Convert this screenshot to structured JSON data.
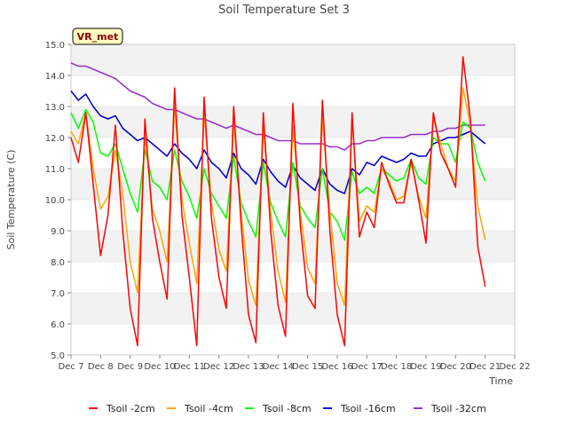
{
  "chart_data": {
    "type": "line",
    "title": "Soil Temperature Set 3",
    "xlabel": "Time",
    "ylabel": "Soil Temperature (C)",
    "station_tag": "VR_met",
    "x_ticks": [
      "Dec 7",
      "Dec 8",
      "Dec 9",
      "Dec 10",
      "Dec 11",
      "Dec 12",
      "Dec 13",
      "Dec 14",
      "Dec 15",
      "Dec 16",
      "Dec 17",
      "Dec 18",
      "Dec 19",
      "Dec 20",
      "Dec 21",
      "Dec 22"
    ],
    "y_ticks": [
      "5.0",
      "6.0",
      "7.0",
      "8.0",
      "9.0",
      "10.0",
      "11.0",
      "12.0",
      "13.0",
      "14.0",
      "15.0"
    ],
    "xlim": [
      "Dec 7",
      "Dec 22"
    ],
    "ylim": [
      5.0,
      15.0
    ],
    "grid": "horizontal bands",
    "legend_position": "bottom",
    "x": [
      "Dec 7 00:00",
      "Dec 7 06:00",
      "Dec 7 12:00",
      "Dec 7 18:00",
      "Dec 8 00:00",
      "Dec 8 06:00",
      "Dec 8 12:00",
      "Dec 8 18:00",
      "Dec 9 00:00",
      "Dec 9 06:00",
      "Dec 9 12:00",
      "Dec 9 18:00",
      "Dec 10 00:00",
      "Dec 10 06:00",
      "Dec 10 12:00",
      "Dec 10 18:00",
      "Dec 11 00:00",
      "Dec 11 06:00",
      "Dec 11 12:00",
      "Dec 11 18:00",
      "Dec 12 00:00",
      "Dec 12 06:00",
      "Dec 12 12:00",
      "Dec 12 18:00",
      "Dec 13 00:00",
      "Dec 13 06:00",
      "Dec 13 12:00",
      "Dec 13 18:00",
      "Dec 14 00:00",
      "Dec 14 06:00",
      "Dec 14 12:00",
      "Dec 14 18:00",
      "Dec 15 00:00",
      "Dec 15 06:00",
      "Dec 15 12:00",
      "Dec 15 18:00",
      "Dec 16 00:00",
      "Dec 16 06:00",
      "Dec 16 12:00",
      "Dec 16 18:00",
      "Dec 17 00:00",
      "Dec 17 06:00",
      "Dec 17 12:00",
      "Dec 17 18:00",
      "Dec 18 00:00",
      "Dec 18 06:00",
      "Dec 18 12:00",
      "Dec 18 18:00",
      "Dec 19 00:00",
      "Dec 19 06:00",
      "Dec 19 12:00",
      "Dec 19 18:00",
      "Dec 20 00:00",
      "Dec 20 06:00",
      "Dec 20 12:00",
      "Dec 20 18:00",
      "Dec 21 00:00"
    ],
    "series": [
      {
        "name": "Tsoil -2cm",
        "color": "#ff0000",
        "values": [
          12.0,
          11.2,
          12.8,
          10.5,
          8.2,
          9.5,
          12.4,
          9.0,
          6.5,
          5.3,
          12.6,
          9.4,
          8.0,
          6.8,
          13.6,
          9.5,
          7.5,
          5.3,
          13.3,
          9.4,
          7.5,
          6.5,
          13.0,
          9.2,
          6.3,
          5.4,
          12.8,
          9.0,
          6.6,
          5.6,
          13.1,
          9.2,
          6.9,
          6.5,
          13.2,
          9.0,
          6.3,
          5.3,
          12.8,
          8.8,
          9.6,
          9.1,
          11.2,
          10.5,
          9.9,
          9.9,
          11.3,
          10.0,
          8.6,
          12.8,
          11.5,
          11.0,
          10.4,
          14.6,
          12.6,
          8.5,
          7.2
        ]
      },
      {
        "name": "Tsoil -4cm",
        "color": "#ffa500",
        "values": [
          12.2,
          11.8,
          12.8,
          11.0,
          9.7,
          10.1,
          11.6,
          10.2,
          8.0,
          7.0,
          12.1,
          9.7,
          9.0,
          8.0,
          13.0,
          10.0,
          8.6,
          7.3,
          12.8,
          9.9,
          8.4,
          7.7,
          12.5,
          9.6,
          7.4,
          6.6,
          12.3,
          9.6,
          7.7,
          6.7,
          12.4,
          9.6,
          7.8,
          7.3,
          12.6,
          9.6,
          7.3,
          6.6,
          12.6,
          9.3,
          9.8,
          9.6,
          11.0,
          10.6,
          10.0,
          10.1,
          11.2,
          10.1,
          9.4,
          12.6,
          11.8,
          11.0,
          10.6,
          13.6,
          12.4,
          9.8,
          8.7
        ]
      },
      {
        "name": "Tsoil -8cm",
        "color": "#00ff00",
        "values": [
          12.8,
          12.3,
          12.9,
          12.5,
          11.5,
          11.4,
          11.8,
          11.0,
          10.2,
          9.6,
          11.6,
          10.6,
          10.4,
          10.0,
          11.6,
          10.6,
          10.1,
          9.4,
          11.0,
          10.2,
          9.8,
          9.4,
          11.4,
          9.9,
          9.3,
          8.8,
          11.2,
          9.9,
          9.3,
          8.8,
          11.2,
          9.8,
          9.4,
          9.1,
          11.0,
          9.6,
          9.3,
          8.7,
          10.9,
          10.2,
          10.4,
          10.2,
          11.0,
          10.8,
          10.6,
          10.7,
          11.3,
          10.7,
          10.5,
          12.0,
          11.8,
          11.8,
          11.2,
          12.5,
          12.3,
          11.2,
          10.6
        ]
      },
      {
        "name": "Tsoil -16cm",
        "color": "#0000cd",
        "values": [
          13.5,
          13.2,
          13.4,
          13.0,
          12.7,
          12.6,
          12.7,
          12.3,
          12.1,
          11.9,
          12.0,
          11.8,
          11.6,
          11.4,
          11.8,
          11.5,
          11.3,
          11.0,
          11.6,
          11.2,
          11.0,
          10.7,
          11.5,
          11.0,
          10.8,
          10.5,
          11.3,
          10.9,
          10.6,
          10.4,
          11.1,
          10.7,
          10.5,
          10.3,
          11.0,
          10.5,
          10.3,
          10.2,
          11.0,
          10.8,
          11.2,
          11.1,
          11.4,
          11.3,
          11.2,
          11.3,
          11.5,
          11.4,
          11.4,
          11.8,
          11.9,
          12.0,
          12.0,
          12.1,
          12.2,
          12.0,
          11.8
        ]
      },
      {
        "name": "Tsoil -32cm",
        "color": "#9932cc",
        "values": [
          14.4,
          14.3,
          14.3,
          14.2,
          14.1,
          14.0,
          13.9,
          13.7,
          13.5,
          13.4,
          13.3,
          13.1,
          13.0,
          12.9,
          12.9,
          12.8,
          12.7,
          12.6,
          12.6,
          12.5,
          12.4,
          12.3,
          12.4,
          12.3,
          12.2,
          12.1,
          12.1,
          12.0,
          11.9,
          11.9,
          11.9,
          11.8,
          11.8,
          11.8,
          11.8,
          11.7,
          11.7,
          11.6,
          11.8,
          11.8,
          11.9,
          11.9,
          12.0,
          12.0,
          12.0,
          12.0,
          12.1,
          12.1,
          12.1,
          12.2,
          12.2,
          12.3,
          12.3,
          12.4,
          12.4,
          12.4,
          12.4
        ]
      }
    ]
  }
}
